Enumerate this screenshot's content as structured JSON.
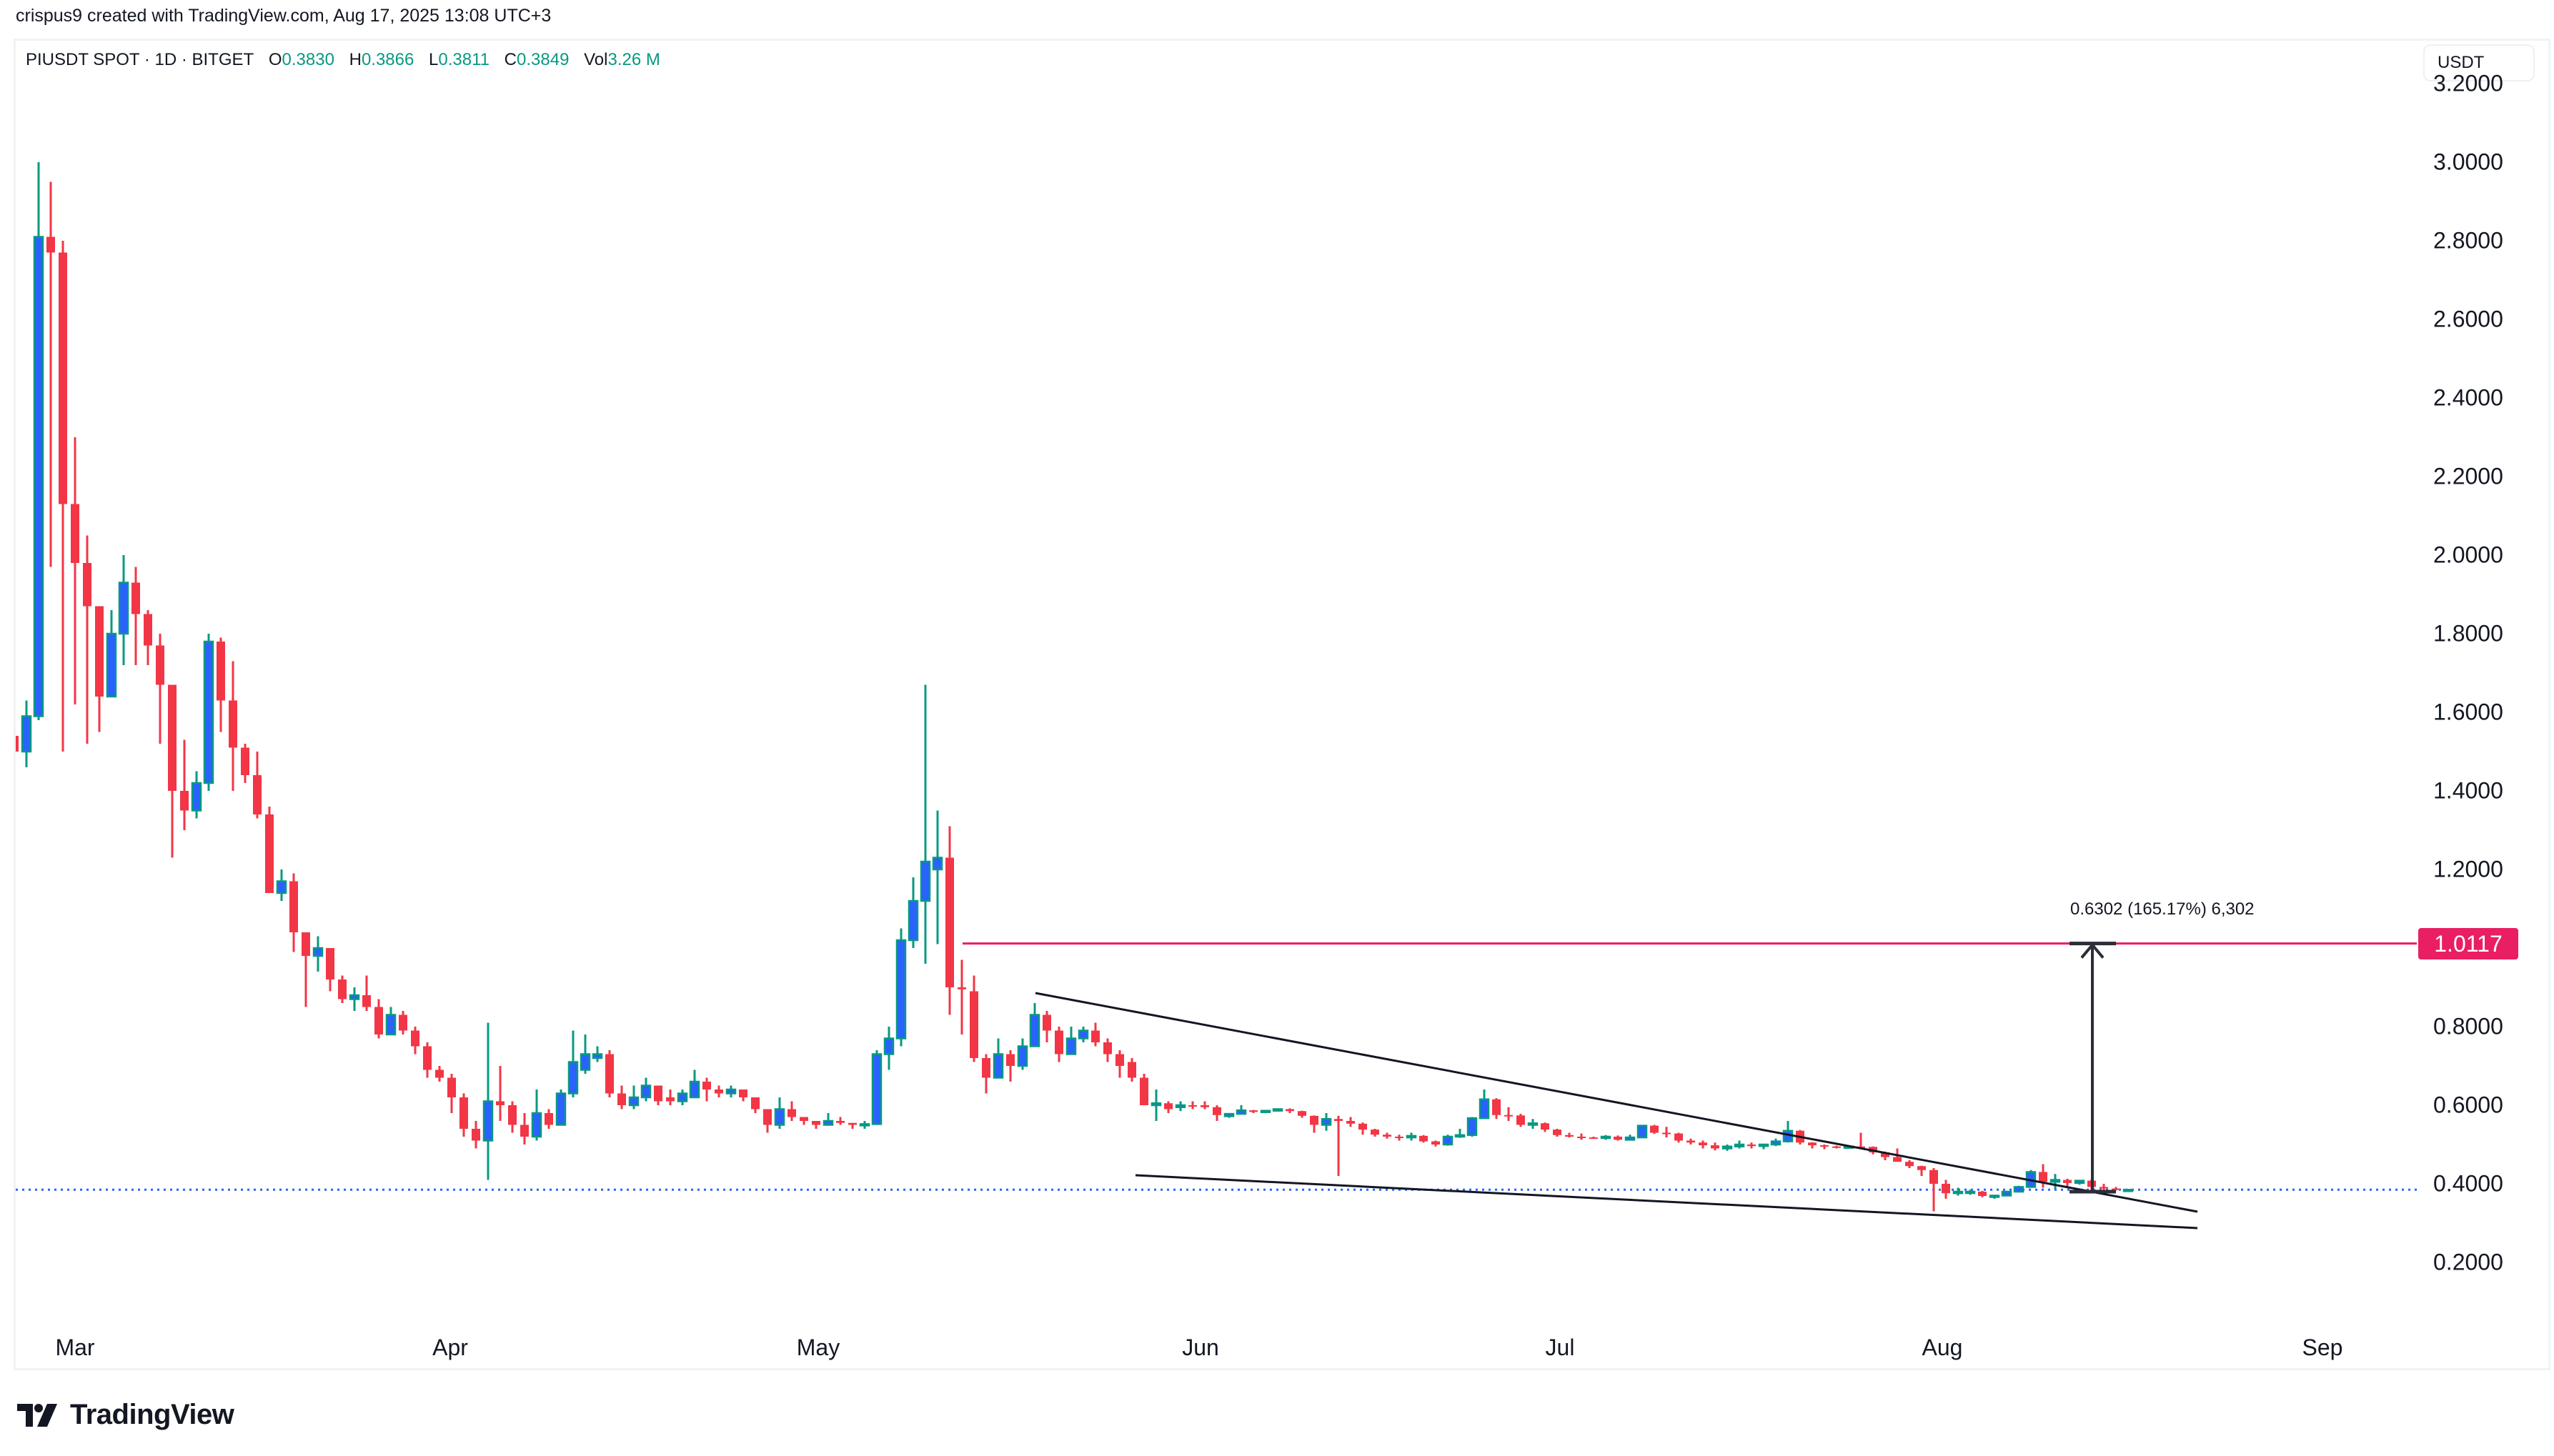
{
  "header": {
    "credit": "crispus9 created with TradingView.com, Aug 17, 2025 13:08 UTC+3"
  },
  "legend": {
    "symbol": "PIUSDT SPOT · 1D · BITGET",
    "open_label": "O",
    "open": "0.3830",
    "high_label": "H",
    "high": "0.3866",
    "low_label": "L",
    "low": "0.3811",
    "close_label": "C",
    "close": "0.3849",
    "vol_label": "Vol",
    "vol": "3.26 M"
  },
  "axis": {
    "currency": "USDT",
    "y_ticks": [
      "3.2000",
      "3.0000",
      "2.8000",
      "2.6000",
      "2.4000",
      "2.2000",
      "2.0000",
      "1.8000",
      "1.6000",
      "1.4000",
      "1.2000",
      "0.8000",
      "0.6000",
      "0.4000",
      "0.2000"
    ],
    "x_ticks": [
      "Mar",
      "Apr",
      "May",
      "Jun",
      "Jul",
      "Aug",
      "Sep"
    ]
  },
  "annotations": {
    "target_price_label": "1.0117",
    "measure_text": "0.6302 (165.17%) 6,302",
    "current_price_line": 0.3849
  },
  "colors": {
    "up_body": "#2962ff",
    "up_border": "#089981",
    "down": "#f23645",
    "target_line": "#e91e63",
    "current_line": "#2962ff",
    "trendline": "#131722"
  },
  "branding": {
    "logo_text": "TradingView"
  },
  "chart_data": {
    "type": "candlestick",
    "title": "PIUSDT SPOT · 1D · BITGET",
    "xlabel": "",
    "ylabel": "USDT",
    "ylim": [
      0.13,
      3.27
    ],
    "x_ticks": [
      "Mar",
      "Apr",
      "May",
      "Jun",
      "Jul",
      "Aug",
      "Sep"
    ],
    "legend": [],
    "horizontal_lines": [
      {
        "price": 1.0117,
        "label": "1.0117",
        "color": "#e91e63"
      },
      {
        "price": 0.3849,
        "style": "dotted",
        "color": "#2962ff"
      }
    ],
    "trendlines": [
      {
        "name": "wedge-upper",
        "from": [
          "2025-05-19",
          0.88
        ],
        "to": [
          "2025-08-28",
          0.33
        ]
      },
      {
        "name": "wedge-lower",
        "from": [
          "2025-05-27",
          0.42
        ],
        "to": [
          "2025-08-28",
          0.29
        ]
      }
    ],
    "measure": {
      "from": 0.3815,
      "to": 1.0117,
      "change": 0.6302,
      "pct": "165.17%",
      "date": "2025-08-22"
    },
    "candles": [
      [
        "2025-02-24",
        1.54,
        1.56,
        1.47,
        1.5
      ],
      [
        "2025-02-25",
        1.5,
        1.63,
        1.46,
        1.59
      ],
      [
        "2025-02-26",
        1.59,
        3.0,
        1.58,
        2.81
      ],
      [
        "2025-02-27",
        2.81,
        2.95,
        1.97,
        2.77
      ],
      [
        "2025-02-28",
        2.77,
        2.8,
        1.5,
        2.13
      ],
      [
        "2025-03-01",
        2.13,
        2.3,
        1.62,
        1.98
      ],
      [
        "2025-03-02",
        1.98,
        2.05,
        1.52,
        1.87
      ],
      [
        "2025-03-03",
        1.87,
        1.87,
        1.55,
        1.64
      ],
      [
        "2025-03-04",
        1.64,
        1.86,
        1.64,
        1.8
      ],
      [
        "2025-03-05",
        1.8,
        2.0,
        1.72,
        1.93
      ],
      [
        "2025-03-06",
        1.93,
        1.97,
        1.72,
        1.85
      ],
      [
        "2025-03-07",
        1.85,
        1.86,
        1.72,
        1.77
      ],
      [
        "2025-03-08",
        1.77,
        1.8,
        1.52,
        1.67
      ],
      [
        "2025-03-09",
        1.67,
        1.67,
        1.23,
        1.4
      ],
      [
        "2025-03-10",
        1.4,
        1.53,
        1.3,
        1.35
      ],
      [
        "2025-03-11",
        1.35,
        1.45,
        1.33,
        1.42
      ],
      [
        "2025-03-12",
        1.42,
        1.8,
        1.4,
        1.78
      ],
      [
        "2025-03-13",
        1.78,
        1.79,
        1.55,
        1.63
      ],
      [
        "2025-03-14",
        1.63,
        1.73,
        1.4,
        1.51
      ],
      [
        "2025-03-15",
        1.51,
        1.52,
        1.42,
        1.44
      ],
      [
        "2025-03-16",
        1.44,
        1.5,
        1.33,
        1.34
      ],
      [
        "2025-03-17",
        1.34,
        1.36,
        1.14,
        1.14
      ],
      [
        "2025-03-18",
        1.14,
        1.2,
        1.12,
        1.17
      ],
      [
        "2025-03-19",
        1.17,
        1.19,
        0.99,
        1.04
      ],
      [
        "2025-03-20",
        1.04,
        1.04,
        0.85,
        0.98
      ],
      [
        "2025-03-21",
        0.98,
        1.03,
        0.94,
        1.0
      ],
      [
        "2025-03-22",
        1.0,
        1.0,
        0.89,
        0.92
      ],
      [
        "2025-03-23",
        0.92,
        0.93,
        0.86,
        0.87
      ],
      [
        "2025-03-24",
        0.87,
        0.9,
        0.84,
        0.88
      ],
      [
        "2025-03-25",
        0.88,
        0.93,
        0.84,
        0.85
      ],
      [
        "2025-03-26",
        0.85,
        0.87,
        0.77,
        0.78
      ],
      [
        "2025-03-27",
        0.78,
        0.85,
        0.78,
        0.83
      ],
      [
        "2025-03-28",
        0.83,
        0.84,
        0.78,
        0.79
      ],
      [
        "2025-03-29",
        0.79,
        0.8,
        0.73,
        0.75
      ],
      [
        "2025-03-30",
        0.75,
        0.76,
        0.67,
        0.69
      ],
      [
        "2025-03-31",
        0.69,
        0.7,
        0.66,
        0.67
      ],
      [
        "2025-04-01",
        0.67,
        0.68,
        0.58,
        0.62
      ],
      [
        "2025-04-02",
        0.62,
        0.63,
        0.52,
        0.54
      ],
      [
        "2025-04-03",
        0.54,
        0.56,
        0.49,
        0.51
      ],
      [
        "2025-04-04",
        0.51,
        0.81,
        0.41,
        0.61
      ],
      [
        "2025-04-05",
        0.61,
        0.7,
        0.56,
        0.6
      ],
      [
        "2025-04-06",
        0.6,
        0.61,
        0.53,
        0.55
      ],
      [
        "2025-04-07",
        0.55,
        0.58,
        0.5,
        0.52
      ],
      [
        "2025-04-08",
        0.52,
        0.64,
        0.51,
        0.58
      ],
      [
        "2025-04-09",
        0.58,
        0.59,
        0.54,
        0.55
      ],
      [
        "2025-04-10",
        0.55,
        0.64,
        0.55,
        0.63
      ],
      [
        "2025-04-11",
        0.63,
        0.79,
        0.62,
        0.71
      ],
      [
        "2025-04-12",
        0.69,
        0.78,
        0.68,
        0.73
      ],
      [
        "2025-04-13",
        0.72,
        0.75,
        0.71,
        0.73
      ],
      [
        "2025-04-14",
        0.73,
        0.74,
        0.62,
        0.63
      ],
      [
        "2025-04-15",
        0.63,
        0.65,
        0.59,
        0.6
      ],
      [
        "2025-04-16",
        0.6,
        0.65,
        0.59,
        0.62
      ],
      [
        "2025-04-17",
        0.62,
        0.67,
        0.61,
        0.65
      ],
      [
        "2025-04-18",
        0.65,
        0.65,
        0.6,
        0.61
      ],
      [
        "2025-04-19",
        0.62,
        0.64,
        0.6,
        0.61
      ],
      [
        "2025-04-20",
        0.61,
        0.64,
        0.6,
        0.63
      ],
      [
        "2025-04-21",
        0.62,
        0.69,
        0.62,
        0.66
      ],
      [
        "2025-04-22",
        0.66,
        0.67,
        0.61,
        0.64
      ],
      [
        "2025-04-23",
        0.64,
        0.65,
        0.62,
        0.63
      ],
      [
        "2025-04-24",
        0.63,
        0.65,
        0.62,
        0.64
      ],
      [
        "2025-04-25",
        0.64,
        0.64,
        0.61,
        0.62
      ],
      [
        "2025-04-26",
        0.62,
        0.62,
        0.58,
        0.59
      ],
      [
        "2025-04-27",
        0.59,
        0.59,
        0.53,
        0.55
      ],
      [
        "2025-04-28",
        0.55,
        0.62,
        0.54,
        0.59
      ],
      [
        "2025-04-29",
        0.59,
        0.61,
        0.56,
        0.57
      ],
      [
        "2025-04-30",
        0.57,
        0.57,
        0.55,
        0.56
      ],
      [
        "2025-05-01",
        0.56,
        0.56,
        0.54,
        0.55
      ],
      [
        "2025-05-02",
        0.55,
        0.58,
        0.55,
        0.56
      ],
      [
        "2025-05-03",
        0.56,
        0.57,
        0.55,
        0.555
      ],
      [
        "2025-05-04",
        0.555,
        0.555,
        0.54,
        0.55
      ],
      [
        "2025-05-05",
        0.55,
        0.56,
        0.54,
        0.552
      ],
      [
        "2025-05-06",
        0.552,
        0.74,
        0.55,
        0.73
      ],
      [
        "2025-05-07",
        0.73,
        0.8,
        0.69,
        0.77
      ],
      [
        "2025-05-08",
        0.77,
        1.05,
        0.75,
        1.02
      ],
      [
        "2025-05-09",
        1.02,
        1.18,
        1.0,
        1.12
      ],
      [
        "2025-05-10",
        1.12,
        1.67,
        0.96,
        1.22
      ],
      [
        "2025-05-11",
        1.2,
        1.35,
        1.01,
        1.23
      ],
      [
        "2025-05-12",
        1.23,
        1.31,
        0.83,
        0.9
      ],
      [
        "2025-05-13",
        0.9,
        0.97,
        0.78,
        0.895
      ],
      [
        "2025-05-14",
        0.89,
        0.93,
        0.71,
        0.72
      ],
      [
        "2025-05-15",
        0.72,
        0.73,
        0.63,
        0.67
      ],
      [
        "2025-05-16",
        0.67,
        0.77,
        0.67,
        0.73
      ],
      [
        "2025-05-17",
        0.73,
        0.74,
        0.66,
        0.7
      ],
      [
        "2025-05-18",
        0.7,
        0.77,
        0.69,
        0.75
      ],
      [
        "2025-05-19",
        0.75,
        0.86,
        0.75,
        0.83
      ],
      [
        "2025-05-20",
        0.83,
        0.84,
        0.76,
        0.79
      ],
      [
        "2025-05-21",
        0.79,
        0.8,
        0.71,
        0.73
      ],
      [
        "2025-05-22",
        0.73,
        0.8,
        0.73,
        0.77
      ],
      [
        "2025-05-23",
        0.77,
        0.8,
        0.76,
        0.79
      ],
      [
        "2025-05-24",
        0.79,
        0.81,
        0.75,
        0.76
      ],
      [
        "2025-05-25",
        0.76,
        0.77,
        0.71,
        0.73
      ],
      [
        "2025-05-26",
        0.73,
        0.74,
        0.67,
        0.7
      ],
      [
        "2025-05-27",
        0.71,
        0.72,
        0.66,
        0.67
      ],
      [
        "2025-05-28",
        0.67,
        0.68,
        0.6,
        0.6
      ],
      [
        "2025-05-29",
        0.6,
        0.64,
        0.56,
        0.605
      ],
      [
        "2025-05-30",
        0.605,
        0.61,
        0.58,
        0.59
      ],
      [
        "2025-05-31",
        0.595,
        0.61,
        0.585,
        0.6
      ],
      [
        "2025-06-01",
        0.6,
        0.61,
        0.59,
        0.598
      ],
      [
        "2025-06-02",
        0.6,
        0.61,
        0.59,
        0.595
      ],
      [
        "2025-06-03",
        0.595,
        0.6,
        0.56,
        0.575
      ],
      [
        "2025-06-04",
        0.572,
        0.58,
        0.568,
        0.578
      ],
      [
        "2025-06-05",
        0.578,
        0.6,
        0.577,
        0.587
      ],
      [
        "2025-06-06",
        0.587,
        0.588,
        0.58,
        0.583
      ],
      [
        "2025-06-07",
        0.583,
        0.587,
        0.58,
        0.586
      ],
      [
        "2025-06-08",
        0.586,
        0.592,
        0.584,
        0.59
      ],
      [
        "2025-06-09",
        0.59,
        0.592,
        0.58,
        0.585
      ],
      [
        "2025-06-10",
        0.585,
        0.586,
        0.568,
        0.573
      ],
      [
        "2025-06-11",
        0.573,
        0.574,
        0.53,
        0.55
      ],
      [
        "2025-06-12",
        0.55,
        0.58,
        0.535,
        0.565
      ],
      [
        "2025-06-13",
        0.565,
        0.573,
        0.42,
        0.56
      ],
      [
        "2025-06-14",
        0.56,
        0.57,
        0.545,
        0.553
      ],
      [
        "2025-06-15",
        0.553,
        0.556,
        0.525,
        0.538
      ],
      [
        "2025-06-16",
        0.538,
        0.54,
        0.52,
        0.525
      ],
      [
        "2025-06-17",
        0.525,
        0.53,
        0.515,
        0.52
      ],
      [
        "2025-06-18",
        0.52,
        0.525,
        0.51,
        0.518
      ],
      [
        "2025-06-19",
        0.518,
        0.53,
        0.51,
        0.522
      ],
      [
        "2025-06-20",
        0.522,
        0.524,
        0.505,
        0.508
      ],
      [
        "2025-06-21",
        0.508,
        0.51,
        0.495,
        0.5
      ],
      [
        "2025-06-22",
        0.5,
        0.525,
        0.497,
        0.52
      ],
      [
        "2025-06-23",
        0.52,
        0.54,
        0.517,
        0.524
      ],
      [
        "2025-06-24",
        0.524,
        0.57,
        0.52,
        0.567
      ],
      [
        "2025-06-25",
        0.567,
        0.64,
        0.565,
        0.615
      ],
      [
        "2025-06-26",
        0.615,
        0.618,
        0.565,
        0.575
      ],
      [
        "2025-06-27",
        0.575,
        0.595,
        0.56,
        0.574
      ],
      [
        "2025-06-28",
        0.574,
        0.578,
        0.545,
        0.55
      ],
      [
        "2025-06-29",
        0.55,
        0.565,
        0.54,
        0.554
      ],
      [
        "2025-06-30",
        0.554,
        0.556,
        0.532,
        0.538
      ],
      [
        "2025-07-01",
        0.538,
        0.54,
        0.52,
        0.524
      ],
      [
        "2025-07-02",
        0.524,
        0.53,
        0.518,
        0.52
      ],
      [
        "2025-07-03",
        0.52,
        0.528,
        0.512,
        0.518
      ],
      [
        "2025-07-04",
        0.518,
        0.52,
        0.515,
        0.517
      ],
      [
        "2025-07-05",
        0.517,
        0.524,
        0.512,
        0.52
      ],
      [
        "2025-07-06",
        0.52,
        0.523,
        0.51,
        0.512
      ],
      [
        "2025-07-07",
        0.512,
        0.525,
        0.51,
        0.518
      ],
      [
        "2025-07-08",
        0.518,
        0.55,
        0.518,
        0.548
      ],
      [
        "2025-07-09",
        0.548,
        0.55,
        0.527,
        0.53
      ],
      [
        "2025-07-10",
        0.53,
        0.545,
        0.518,
        0.528
      ],
      [
        "2025-07-11",
        0.528,
        0.53,
        0.505,
        0.51
      ],
      [
        "2025-07-12",
        0.51,
        0.515,
        0.5,
        0.505
      ],
      [
        "2025-07-13",
        0.505,
        0.51,
        0.49,
        0.498
      ],
      [
        "2025-07-14",
        0.498,
        0.505,
        0.485,
        0.49
      ],
      [
        "2025-07-15",
        0.49,
        0.5,
        0.484,
        0.495
      ],
      [
        "2025-07-16",
        0.495,
        0.51,
        0.49,
        0.5
      ],
      [
        "2025-07-17",
        0.5,
        0.505,
        0.49,
        0.496
      ],
      [
        "2025-07-18",
        0.496,
        0.502,
        0.488,
        0.5
      ],
      [
        "2025-07-19",
        0.5,
        0.515,
        0.496,
        0.508
      ],
      [
        "2025-07-20",
        0.508,
        0.56,
        0.505,
        0.535
      ],
      [
        "2025-07-21",
        0.535,
        0.537,
        0.5,
        0.505
      ],
      [
        "2025-07-22",
        0.505,
        0.506,
        0.49,
        0.498
      ],
      [
        "2025-07-23",
        0.498,
        0.5,
        0.488,
        0.495
      ],
      [
        "2025-07-24",
        0.495,
        0.497,
        0.49,
        0.493
      ],
      [
        "2025-07-25",
        0.493,
        0.497,
        0.49,
        0.495
      ],
      [
        "2025-07-26",
        0.495,
        0.53,
        0.49,
        0.494
      ],
      [
        "2025-07-27",
        0.494,
        0.495,
        0.475,
        0.48
      ],
      [
        "2025-07-28",
        0.48,
        0.482,
        0.46,
        0.468
      ],
      [
        "2025-07-29",
        0.468,
        0.49,
        0.46,
        0.456
      ],
      [
        "2025-07-30",
        0.456,
        0.46,
        0.44,
        0.445
      ],
      [
        "2025-07-31",
        0.445,
        0.446,
        0.42,
        0.435
      ],
      [
        "2025-08-01",
        0.435,
        0.44,
        0.33,
        0.4
      ],
      [
        "2025-08-02",
        0.4,
        0.41,
        0.362,
        0.376
      ],
      [
        "2025-08-03",
        0.376,
        0.39,
        0.37,
        0.38
      ],
      [
        "2025-08-04",
        0.38,
        0.385,
        0.372,
        0.38
      ],
      [
        "2025-08-05",
        0.38,
        0.382,
        0.366,
        0.369
      ],
      [
        "2025-08-06",
        0.369,
        0.372,
        0.362,
        0.37
      ],
      [
        "2025-08-07",
        0.37,
        0.382,
        0.368,
        0.38
      ],
      [
        "2025-08-08",
        0.38,
        0.395,
        0.378,
        0.392
      ],
      [
        "2025-08-09",
        0.392,
        0.435,
        0.39,
        0.43
      ],
      [
        "2025-08-10",
        0.43,
        0.45,
        0.39,
        0.405
      ],
      [
        "2025-08-11",
        0.405,
        0.425,
        0.385,
        0.41
      ],
      [
        "2025-08-12",
        0.41,
        0.413,
        0.39,
        0.402
      ],
      [
        "2025-08-13",
        0.402,
        0.41,
        0.398,
        0.408
      ],
      [
        "2025-08-14",
        0.408,
        0.412,
        0.382,
        0.392
      ],
      [
        "2025-08-15",
        0.392,
        0.4,
        0.382,
        0.388
      ],
      [
        "2025-08-16",
        0.388,
        0.392,
        0.383,
        0.386
      ],
      [
        "2025-08-17",
        0.383,
        0.3866,
        0.3811,
        0.3849
      ]
    ]
  }
}
